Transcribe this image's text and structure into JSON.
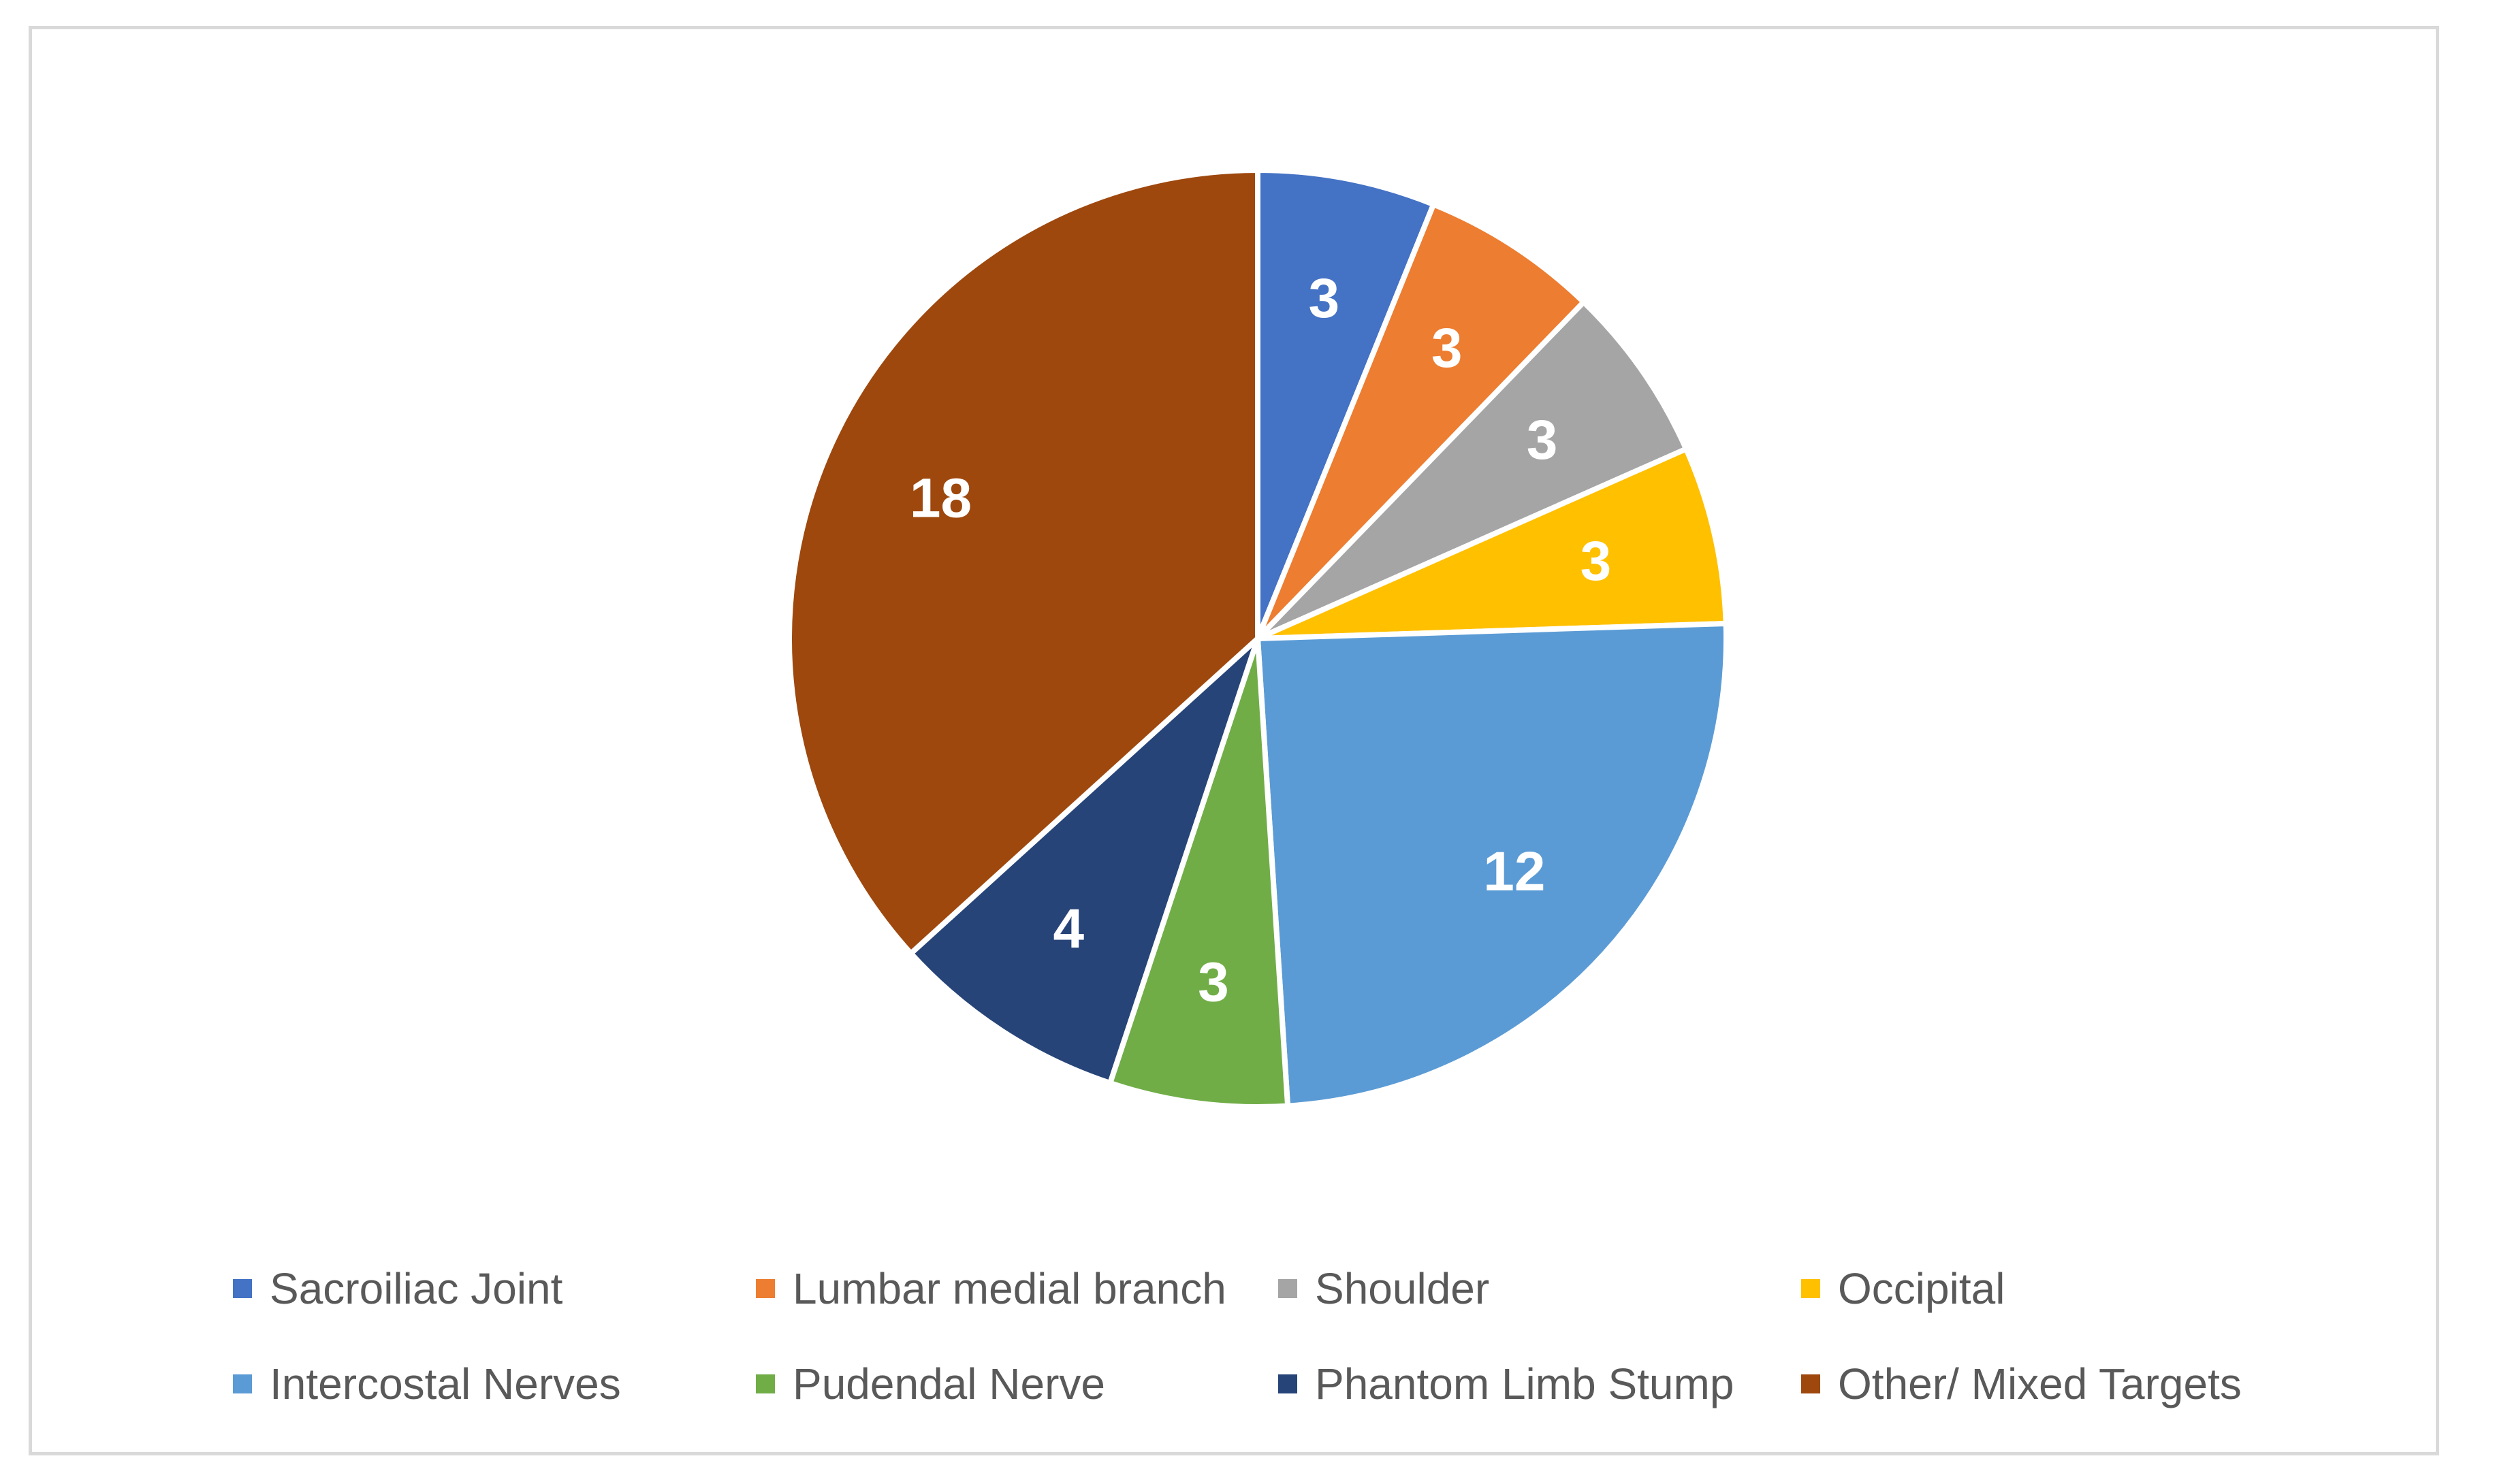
{
  "chart_data": {
    "type": "pie",
    "title": "",
    "categories": [
      "Sacroiliac Joint",
      "Lumbar medial branch",
      "Shoulder",
      "Occipital",
      "Intercostal Nerves",
      "Pudendal Nerve",
      "Phantom Limb Stump",
      "Other/ Mixed Targets"
    ],
    "values": [
      3,
      3,
      3,
      3,
      12,
      3,
      4,
      18
    ],
    "colors": [
      "#4472C4",
      "#ED7D31",
      "#A5A5A5",
      "#FFC000",
      "#5B9BD5",
      "#70AD47",
      "#264478",
      "#9E480E"
    ],
    "data_labels": [
      "3",
      "3",
      "3",
      "3",
      "12",
      "3",
      "4",
      "18"
    ],
    "start_angle_deg": 0,
    "direction": "clockwise",
    "legend_position": "bottom"
  },
  "legend": {
    "items": [
      {
        "label": "Sacroiliac Joint",
        "color": "#4472C4"
      },
      {
        "label": "Lumbar medial branch",
        "color": "#ED7D31"
      },
      {
        "label": "Shoulder",
        "color": "#A5A5A5"
      },
      {
        "label": "Occipital",
        "color": "#FFC000"
      },
      {
        "label": "Intercostal Nerves",
        "color": "#5B9BD5"
      },
      {
        "label": "Pudendal Nerve",
        "color": "#70AD47"
      },
      {
        "label": "Phantom Limb Stump",
        "color": "#264478"
      },
      {
        "label": "Other/ Mixed Targets",
        "color": "#9E480E"
      }
    ]
  }
}
